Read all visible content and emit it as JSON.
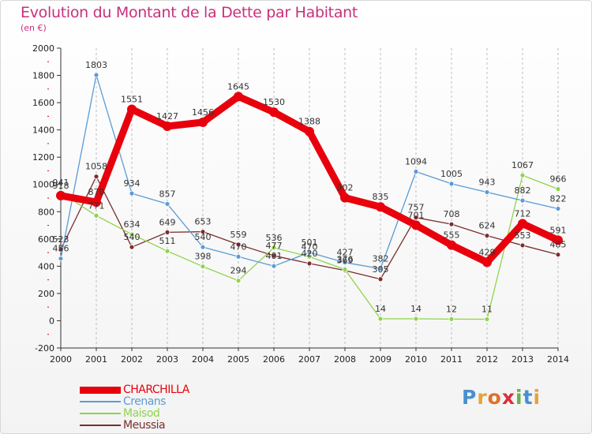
{
  "title": "Evolution du Montant de la Dette par Habitant",
  "subtitle": "(en €)",
  "logo": {
    "text": "Proxiti",
    "letter_colors": [
      "#4a8fd0",
      "#e8a23a",
      "#e0702c",
      "#d8303c",
      "#6ab04c",
      "#4a8fd0",
      "#e8a23a"
    ]
  },
  "chart_data": {
    "type": "line",
    "title": "Evolution du Montant de la Dette par Habitant",
    "subtitle": "(en €)",
    "x": [
      2000,
      2001,
      2002,
      2003,
      2004,
      2005,
      2006,
      2007,
      2008,
      2009,
      2010,
      2011,
      2012,
      2013,
      2014
    ],
    "ylim": [
      -200,
      2000
    ],
    "yticks": [
      -200,
      0,
      200,
      400,
      600,
      800,
      1000,
      1200,
      1400,
      1600,
      1800,
      2000
    ],
    "grid": "vertical",
    "legend_position": "bottom-left",
    "series": [
      {
        "name": "CHARCHILLA",
        "color": "#e8000c",
        "values": [
          918,
          870,
          1551,
          1427,
          1456,
          1645,
          1530,
          1388,
          902,
          835,
          701,
          555,
          429,
          712,
          591
        ],
        "labels": [
          "918",
          "870",
          "1551",
          "1427",
          "1456",
          "1645",
          "1530",
          "1388",
          "902",
          "835",
          "701",
          "555",
          "429",
          "712",
          "591"
        ]
      },
      {
        "name": "Crenans",
        "color": "#5b9bd5",
        "values": [
          456,
          1803,
          934,
          857,
          540,
          470,
          401,
          501,
          427,
          382,
          1094,
          1005,
          943,
          882,
          822
        ],
        "labels": [
          "456",
          "1803",
          "934",
          "857",
          "540",
          "470",
          "401",
          "501",
          "427",
          "382",
          "1094",
          "1005",
          "943",
          "882",
          "822"
        ]
      },
      {
        "name": "Maisod",
        "color": "#8fd44a",
        "values": [
          941,
          771,
          634,
          511,
          398,
          294,
          536,
          470,
          376,
          14,
          14,
          12,
          11,
          1067,
          966
        ],
        "labels": [
          "941",
          "771",
          "634",
          "511",
          "398",
          "294",
          "536",
          "470",
          "376",
          "14",
          "14",
          "12",
          "11",
          "1067",
          "966"
        ]
      },
      {
        "name": "Meussia",
        "color": "#7a2e2e",
        "values": [
          523,
          1058,
          540,
          649,
          653,
          559,
          477,
          420,
          369,
          305,
          757,
          708,
          624,
          553,
          485
        ],
        "labels": [
          "523",
          "1058",
          "540",
          "649",
          "653",
          "559",
          "477",
          "420",
          "369",
          "305",
          "757",
          "708",
          "624",
          "553",
          "485"
        ]
      }
    ]
  }
}
